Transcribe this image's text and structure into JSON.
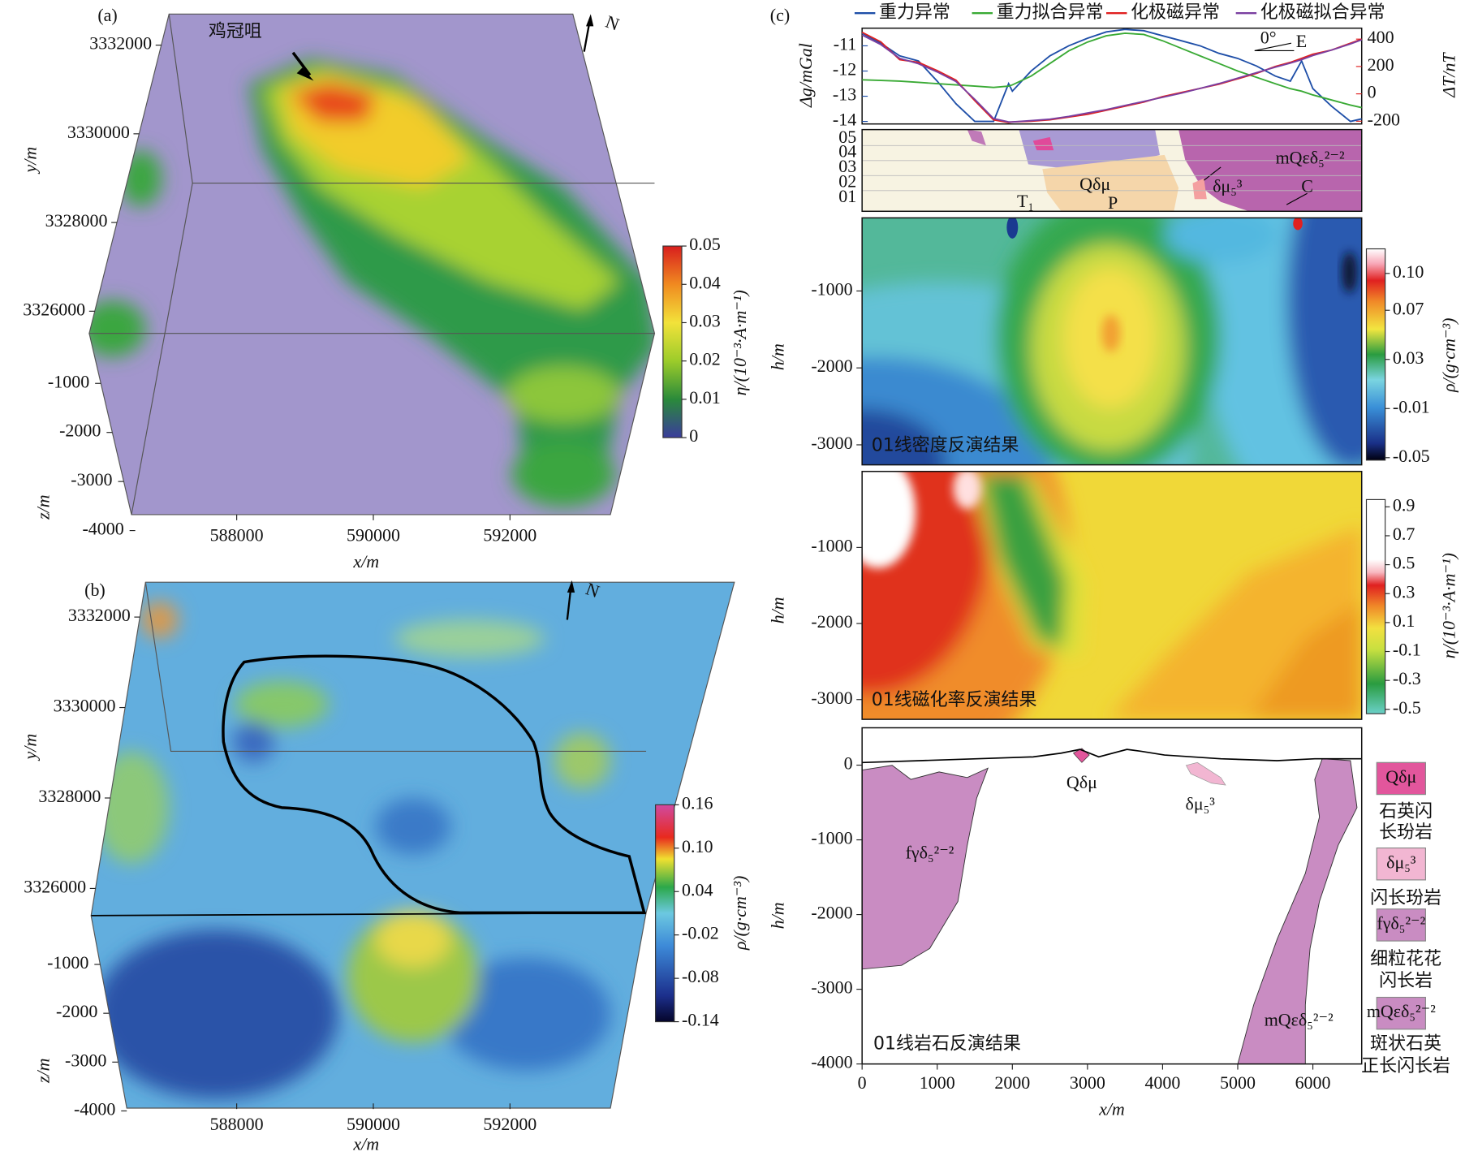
{
  "chart_data": [
    {
      "type": "volume",
      "panel_label": "(a)",
      "annotation": "鸡冠咀",
      "north": "N",
      "x_label": "x/m",
      "y_label": "y/m",
      "z_label": "z/m",
      "xlim": [
        586460,
        593470
      ],
      "xticks": [
        588000,
        590000,
        592000
      ],
      "ylim": [
        3325500,
        3332700
      ],
      "yticks": [
        3326000,
        3328000,
        3330000,
        3332000
      ],
      "zlim": [
        -4000,
        0
      ],
      "zticks": [
        -4000,
        -3000,
        -2000,
        -1000
      ],
      "colorbar": {
        "label": "η/(10⁻³·A·m⁻¹)",
        "lim": [
          0,
          0.05
        ],
        "ticks": [
          0,
          0.01,
          0.02,
          0.03,
          0.04,
          0.05
        ]
      }
    },
    {
      "type": "volume",
      "panel_label": "(b)",
      "north": "N",
      "x_label": "x/m",
      "y_label": "y/m",
      "z_label": "z/m",
      "xlim": [
        586460,
        593470
      ],
      "xticks": [
        588000,
        590000,
        592000
      ],
      "ylim": [
        3325400,
        3332770
      ],
      "yticks": [
        3326000,
        3328000,
        3330000,
        3332000
      ],
      "zlim": [
        -4000,
        0
      ],
      "zticks": [
        -4000,
        -3000,
        -2000,
        -1000
      ],
      "colorbar": {
        "label": "ρ/(g·cm⁻³)",
        "lim": [
          -0.14,
          0.16
        ],
        "ticks": [
          -0.14,
          -0.08,
          -0.02,
          0.04,
          {
            "value": 0.1,
            "label": "0.10"
          },
          0.16
        ]
      }
    },
    {
      "type": "line",
      "panel_label": "(c)",
      "y_label": "Δg/mGal",
      "y2_label": "ΔT/nT",
      "annotation": "0°",
      "direction": "E",
      "xlim": [
        0,
        6650
      ],
      "x": [
        0,
        250,
        500,
        750,
        1000,
        1250,
        1500,
        1750,
        1950,
        2000,
        2250,
        2500,
        2750,
        3000,
        3250,
        3500,
        3750,
        4000,
        4250,
        4500,
        4750,
        5000,
        5250,
        5500,
        5700,
        5850,
        6000,
        6250,
        6500,
        6650
      ],
      "ylim": [
        -14.1,
        -10.3
      ],
      "yticks": [
        -14,
        -13,
        -12,
        -11
      ],
      "y2lim": [
        -220,
        480
      ],
      "y2ticks": [
        -200,
        0,
        200,
        400
      ],
      "series": [
        {
          "name": "重力异常",
          "color": "#1f4fa8",
          "values": [
            -10.5,
            -10.9,
            -11.4,
            -11.6,
            -12.4,
            -13.3,
            -14.0,
            -14.0,
            -12.5,
            -12.8,
            -12.0,
            -11.4,
            -11.0,
            -10.7,
            -10.45,
            -10.35,
            -10.4,
            -10.6,
            -10.8,
            -11.0,
            -11.3,
            -11.5,
            -11.8,
            -12.2,
            -12.4,
            -11.6,
            -12.7,
            -13.4,
            -14.0,
            -13.9
          ]
        },
        {
          "name": "重力拟合异常",
          "color": "#3aaa35",
          "values": [
            -12.35,
            -12.37,
            -12.4,
            -12.45,
            -12.5,
            -12.55,
            -12.6,
            -12.65,
            -12.6,
            -12.55,
            -12.2,
            -11.7,
            -11.2,
            -10.85,
            -10.6,
            -10.5,
            -10.55,
            -10.8,
            -11.1,
            -11.4,
            -11.7,
            -12.0,
            -12.25,
            -12.5,
            -12.7,
            -12.8,
            -12.95,
            -13.15,
            -13.35,
            -13.45
          ]
        },
        {
          "name": "化极磁异常",
          "color": "#e02020",
          "axis": "y2",
          "values": [
            450,
            380,
            250,
            230,
            170,
            100,
            -50,
            -190,
            -210,
            -205,
            -200,
            -190,
            -170,
            -150,
            -120,
            -90,
            -60,
            -20,
            10,
            40,
            70,
            110,
            150,
            200,
            230,
            260,
            290,
            320,
            370,
            400
          ]
        },
        {
          "name": "化极磁拟合异常",
          "color": "#7a3fa0",
          "axis": "y2",
          "values": [
            430,
            360,
            260,
            220,
            160,
            90,
            -40,
            -180,
            -205,
            -205,
            -195,
            -185,
            -165,
            -140,
            -115,
            -85,
            -55,
            -25,
            5,
            40,
            75,
            115,
            155,
            195,
            225,
            250,
            280,
            320,
            365,
            395
          ]
        }
      ]
    },
    {
      "type": "section",
      "layer_ticks": [
        "05",
        "04",
        "03",
        "02",
        "01"
      ],
      "labels": [
        "T₁",
        "Qδμ",
        "P",
        "δμ₅³",
        "C",
        "mQεδ₅²⁻²"
      ]
    },
    {
      "type": "contour",
      "title": "01线密度反演结果",
      "y_label": "h/m",
      "ylim": [
        -3260,
        -50
      ],
      "yticks": [
        -3000,
        -2000,
        -1000
      ],
      "colorbar": {
        "label": "ρ/(g·cm⁻³)",
        "lim": [
          -0.052,
          0.12
        ],
        "ticks": [
          -0.05,
          -0.01,
          0.03,
          0.07,
          {
            "value": 0.1,
            "label": "0.10"
          }
        ]
      }
    },
    {
      "type": "contour",
      "title": "01线磁化率反演结果",
      "y_label": "h/m",
      "ylim": [
        -3260,
        0
      ],
      "yticks": [
        -3000,
        -2000,
        -1000
      ],
      "colorbar": {
        "label": "η/(10⁻³·A·m⁻¹)",
        "lim": [
          -0.53,
          0.95
        ],
        "ticks": [
          -0.5,
          -0.3,
          -0.1,
          0.1,
          0.3,
          0.5,
          0.7,
          0.9
        ]
      }
    },
    {
      "type": "lithology",
      "title": "01线岩石反演结果",
      "x_label": "x/m",
      "y_label": "h/m",
      "xlim": [
        0,
        6650
      ],
      "xticks": [
        0,
        1000,
        2000,
        3000,
        4000,
        5000,
        6000
      ],
      "ylim": [
        -4000,
        500
      ],
      "yticks": [
        -4000,
        -3000,
        -2000,
        -1000,
        0
      ],
      "labels": [
        "Qδμ",
        "δμ₅³",
        "fγδ₅²⁻²",
        "mQεδ₅²⁻²"
      ],
      "legend": [
        {
          "symbol": "Qδμ",
          "color": "#e2569c",
          "desc": [
            "石英闪",
            "长玢岩"
          ]
        },
        {
          "symbol": "δμ₅³",
          "color": "#f2b6d2",
          "desc": [
            "闪长玢岩"
          ]
        },
        {
          "symbol": "fγδ₅²⁻²",
          "color": "#c98cc2",
          "desc": [
            "细粒花花",
            "闪长岩"
          ]
        },
        {
          "symbol": "mQεδ₅²⁻²",
          "color": "#c98cc2",
          "desc": [
            "斑状石英",
            "正长闪长岩"
          ]
        }
      ]
    }
  ]
}
